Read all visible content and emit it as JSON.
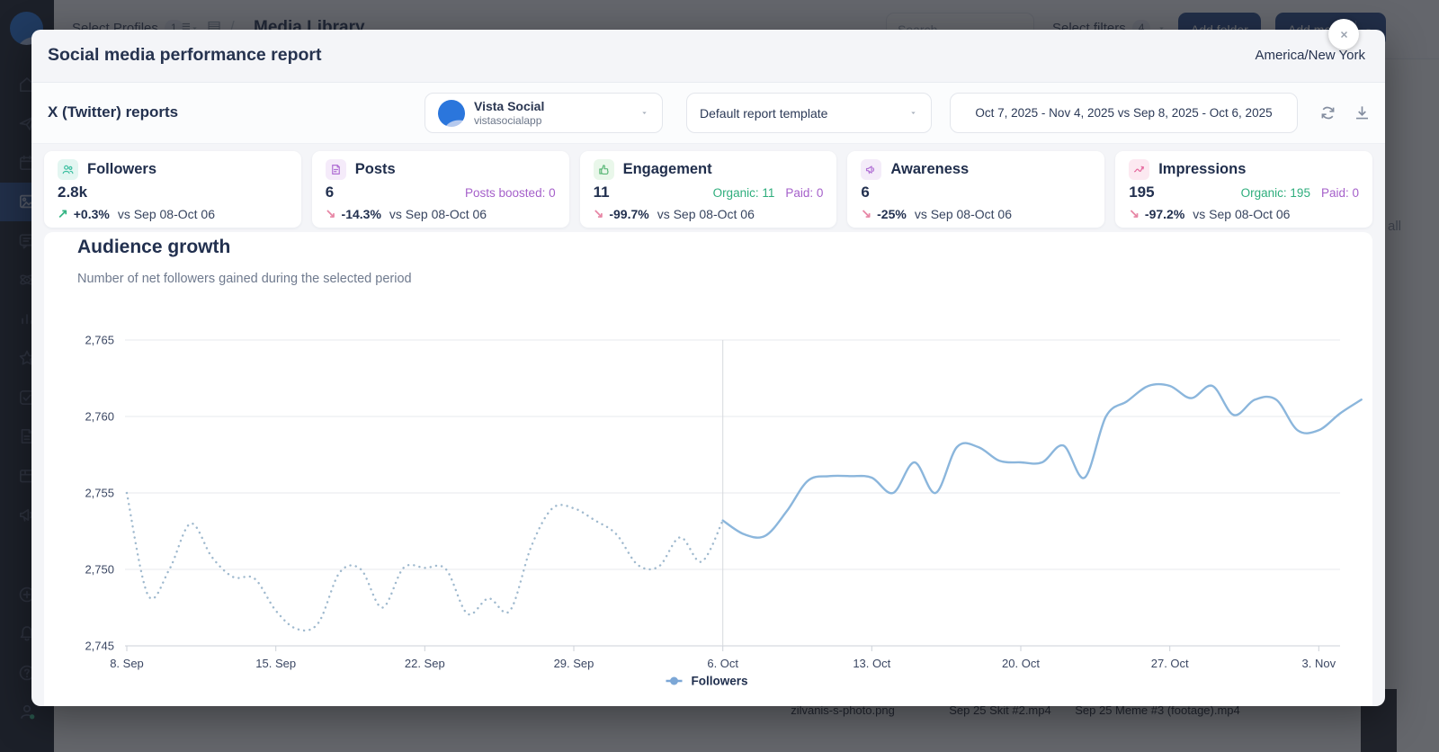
{
  "colors": {
    "accent_green": "#35b584",
    "accent_purple": "#a560ca",
    "accent_pink": "#e786a5",
    "navy_text": "#22304f",
    "sidebar_bg": "#1c2231",
    "sidebar_active": "#2e5391",
    "line_current": "#8bb6dc",
    "line_previous": "#9fb9ce",
    "button_blue": "#2d4e8f"
  },
  "sidebar": {
    "top_items": [
      {
        "name": "home",
        "active": false
      },
      {
        "name": "publish",
        "active": false
      },
      {
        "name": "calendar",
        "active": false
      },
      {
        "name": "media",
        "active": true
      },
      {
        "name": "inbox",
        "active": false
      },
      {
        "name": "listening",
        "active": false
      },
      {
        "name": "analytics",
        "active": false
      },
      {
        "name": "reviews",
        "active": false
      },
      {
        "name": "tasks",
        "active": false
      },
      {
        "name": "reports",
        "active": false
      },
      {
        "name": "library",
        "active": false
      },
      {
        "name": "advocacy",
        "active": false
      }
    ],
    "bottom_items": [
      {
        "name": "create",
        "active": false
      },
      {
        "name": "notifications",
        "active": false
      },
      {
        "name": "help",
        "active": false
      },
      {
        "name": "profile",
        "active": false
      }
    ]
  },
  "background": {
    "topbar": {
      "select_profiles_label": "Select Profiles",
      "select_profiles_count": "1",
      "page_title": "Media Library",
      "search_placeholder": "Search",
      "filters_label": "Select filters",
      "filters_count": "4",
      "add_folder_label": "Add folder",
      "add_media_label": "Add media"
    },
    "select_all_label": "all",
    "files": [
      "zilvanis-s-photo.png",
      "Sep 25 Skit #2.mp4",
      "Sep 25 Meme #3 (footage).mp4"
    ]
  },
  "modal": {
    "title": "Social media performance report",
    "timezone": "America/New York",
    "report_type": "X (Twitter) reports",
    "profile": {
      "name": "Vista Social",
      "handle": "vistasocialapp"
    },
    "template": "Default report template",
    "date_range": "Oct 7, 2025 - Nov 4, 2025 vs Sep 8, 2025 - Oct 6, 2025",
    "cards": [
      {
        "label": "Followers",
        "value": "2.8k",
        "change": "+0.3%",
        "direction": "up",
        "vs": "vs Sep 08-Oct 06",
        "icon": "followers",
        "icon_color": "#3bbfa0",
        "icon_bg": "#e3f6f1"
      },
      {
        "label": "Posts",
        "value": "6",
        "extra_purple": "Posts boosted: 0",
        "change": "-14.3%",
        "direction": "down",
        "vs": "vs Sep 08-Oct 06",
        "icon": "posts",
        "icon_color": "#b06fd4",
        "icon_bg": "#f5ebfa"
      },
      {
        "label": "Engagement",
        "value": "11",
        "extra_green": "Organic: 11",
        "extra_purple": "Paid: 0",
        "change": "-99.7%",
        "direction": "down",
        "vs": "vs Sep 08-Oct 06",
        "icon": "engagement",
        "icon_color": "#5cb878",
        "icon_bg": "#e9f7ea"
      },
      {
        "label": "Awareness",
        "value": "6",
        "change": "-25%",
        "direction": "down",
        "vs": "vs Sep 08-Oct 06",
        "icon": "awareness",
        "icon_color": "#b06fd4",
        "icon_bg": "#f4ecf9"
      },
      {
        "label": "Impressions",
        "value": "195",
        "extra_green": "Organic: 195",
        "extra_purple": "Paid: 0",
        "change": "-97.2%",
        "direction": "down",
        "vs": "vs Sep 08-Oct 06",
        "icon": "impressions",
        "icon_color": "#e5699e",
        "icon_bg": "#fce9f1"
      }
    ],
    "section": {
      "title": "Audience growth",
      "subtitle": "Number of net followers gained during the selected period"
    }
  },
  "chart_data": {
    "type": "line",
    "title": "Audience growth",
    "xlabel": "",
    "ylabel": "",
    "ylim": [
      2745,
      2765
    ],
    "yticks": [
      2745,
      2750,
      2755,
      2760,
      2765
    ],
    "xticks": [
      {
        "label": "8. Sep",
        "day": 0
      },
      {
        "label": "15. Sep",
        "day": 7
      },
      {
        "label": "22. Sep",
        "day": 14
      },
      {
        "label": "29. Sep",
        "day": 21
      },
      {
        "label": "6. Oct",
        "day": 28
      },
      {
        "label": "13. Oct",
        "day": 35
      },
      {
        "label": "20. Oct",
        "day": 42
      },
      {
        "label": "27. Oct",
        "day": 49
      },
      {
        "label": "3. Nov",
        "day": 56
      }
    ],
    "total_days": 57,
    "period_divider_day": 28,
    "grid": true,
    "legend_position": "bottom",
    "legend_label": "Followers",
    "series": [
      {
        "name": "Followers (previous period Sep 8 - Oct 6)",
        "style": "dotted",
        "color": "#9fb9ce",
        "start_day": 0,
        "values": [
          2755,
          2748.3,
          2750,
          2753,
          2750.8,
          2749.5,
          2749.4,
          2747.3,
          2746.1,
          2746.5,
          2749.8,
          2750,
          2747.5,
          2750.1,
          2750.1,
          2750,
          2747.1,
          2748.1,
          2747.3,
          2751.5,
          2754,
          2754,
          2753.2,
          2752.3,
          2750.3,
          2750.2,
          2752.1,
          2750.5,
          2753.2
        ]
      },
      {
        "name": "Followers (current period Oct 7 - Nov 4)",
        "style": "solid",
        "color": "#8bb6dc",
        "start_day": 28,
        "values": [
          2753.2,
          2752.3,
          2752.2,
          2753.8,
          2755.8,
          2756.1,
          2756.1,
          2756,
          2755,
          2757,
          2755,
          2758,
          2758,
          2757.1,
          2757,
          2757,
          2758.1,
          2756,
          2760,
          2761,
          2762,
          2762,
          2761.2,
          2762,
          2760.1,
          2761.1,
          2761.1,
          2759.1,
          2759.1,
          2760.2,
          2761.1
        ]
      }
    ]
  }
}
